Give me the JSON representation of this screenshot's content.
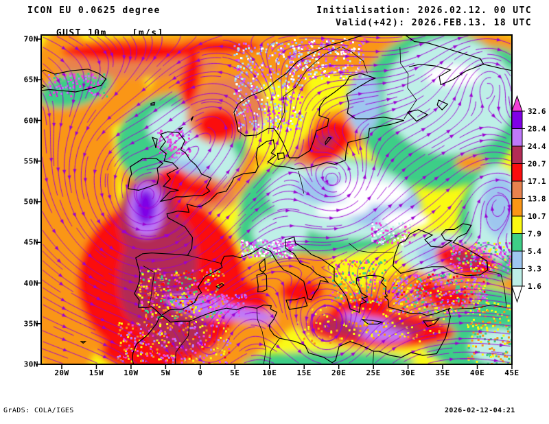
{
  "header": {
    "model_line": "ICON EU 0.0625 degree",
    "field_line": "GUST 10m",
    "units_line": "[m/s]",
    "init_line": "Initialisation: 2026.02.12. 00 UTC",
    "valid_line": "Valid(+42): 2026.FEB.13. 18 UTC"
  },
  "footer": {
    "credit": "GrADS: COLA/IGES",
    "timestamp": "2026-02-12-04:21"
  },
  "axes": {
    "lat_labels": [
      "70N",
      "65N",
      "60N",
      "55N",
      "50N",
      "45N",
      "40N",
      "35N",
      "30N"
    ],
    "lon_labels": [
      "20W",
      "15W",
      "10W",
      "5W",
      "0",
      "5E",
      "10E",
      "15E",
      "20E",
      "25E",
      "30E",
      "35E",
      "40E",
      "45E"
    ]
  },
  "legend": {
    "labels": [
      "32.6",
      "28.4",
      "24.4",
      "20.7",
      "17.1",
      "13.8",
      "10.7",
      "7.9",
      "5.4",
      "3.3",
      "1.6"
    ],
    "band_colors_top_to_bottom": [
      "#7F00E6",
      "#BE79FA",
      "#B32C55",
      "#FB0D0D",
      "#E8824E",
      "#FA9616",
      "#FAFA12",
      "#3ECE87",
      "#9EC6EF",
      "#BEEFE7"
    ],
    "over_arrow_color": "#F23FD8",
    "under_arrow_color": "#FFFFFF"
  },
  "map": {
    "streamline_color": "#9B00D2",
    "coastline_color": "#000000",
    "frame_color": "#000000",
    "palette": {
      "purple": "#7F00E6",
      "lilac": "#BE79FA",
      "crimson": "#B32C55",
      "red": "#FB0D0D",
      "salmon": "#E8824E",
      "orange": "#FA9616",
      "yellow": "#FAFA12",
      "green": "#3ECE87",
      "lightblue": "#9EC6EF",
      "cyan": "#BEEFE7",
      "white": "#FFFFFF",
      "magenta": "#F23FD8"
    }
  }
}
